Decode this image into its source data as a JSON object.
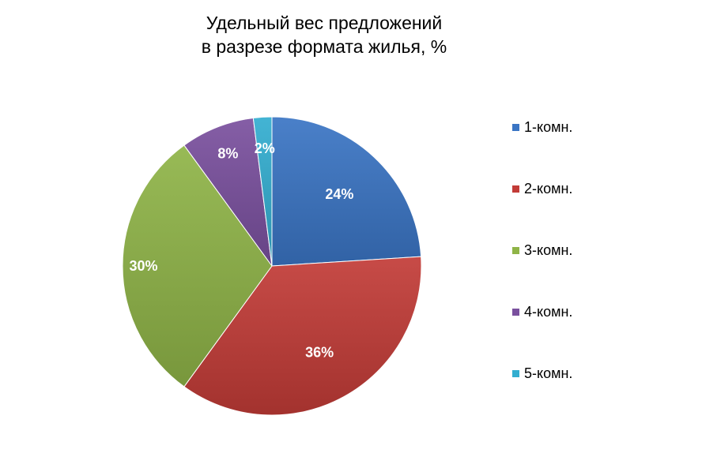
{
  "chart_data": {
    "type": "pie",
    "title": "Удельный вес предложений в разрезе формата жилья, %",
    "title_lines": [
      "Удельный вес предложений",
      "в разрезе формата жилья, %"
    ],
    "categories": [
      "1-комн.",
      "2-комн.",
      "3-комн.",
      "4-комн.",
      "5-комн."
    ],
    "values": [
      24,
      36,
      30,
      8,
      2
    ],
    "data_labels": [
      "24%",
      "36%",
      "30%",
      "8%",
      "2%"
    ],
    "colors": [
      "#3a75c4",
      "#c23b37",
      "#8fb447",
      "#7a509e",
      "#33aed0"
    ],
    "legend_position": "right",
    "start": "12 o'clock",
    "direction": "clockwise"
  }
}
